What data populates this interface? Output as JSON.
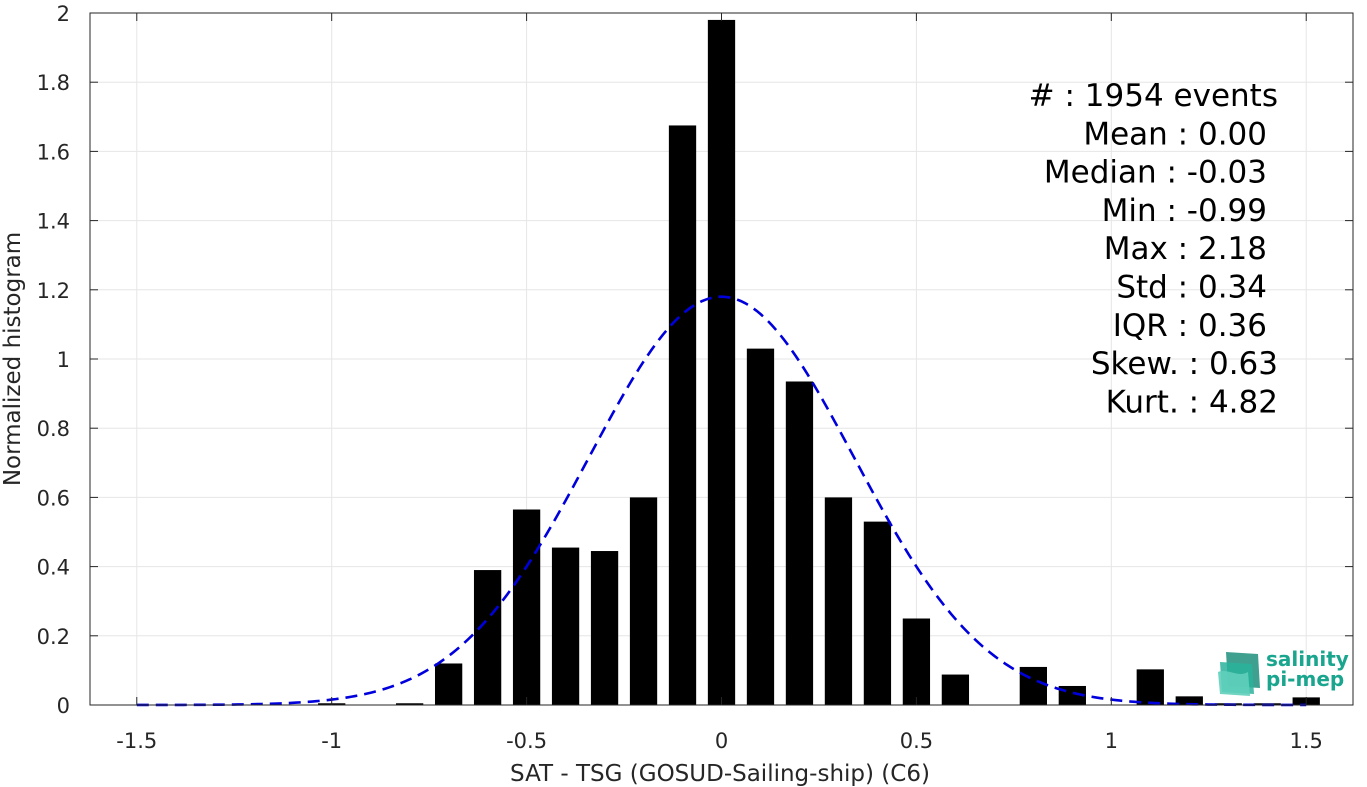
{
  "chart_data": {
    "type": "bar",
    "xlabel": "SAT - TSG (GOSUD-Sailing-ship) (C6)",
    "ylabel": "Normalized histogram",
    "xlim": [
      -1.62,
      1.62
    ],
    "ylim": [
      0,
      2
    ],
    "grid": true,
    "x_ticks": [
      -1.5,
      -1,
      -0.5,
      0,
      0.5,
      1,
      1.5
    ],
    "x_tick_labels": [
      "-1.5",
      "-1",
      "-0.5",
      "0",
      "0.5",
      "1",
      "1.5"
    ],
    "y_ticks": [
      0,
      0.2,
      0.4,
      0.6,
      0.8,
      1,
      1.2,
      1.4,
      1.6,
      1.8,
      2
    ],
    "y_tick_labels": [
      "0",
      "0.2",
      "0.4",
      "0.6",
      "0.8",
      "1",
      "1.2",
      "1.4",
      "1.6",
      "1.8",
      "2"
    ],
    "bin_width": 0.1,
    "bars": {
      "x": [
        -1.5,
        -1.4,
        -1.3,
        -1.2,
        -1.1,
        -1.0,
        -0.9,
        -0.8,
        -0.7,
        -0.6,
        -0.5,
        -0.4,
        -0.3,
        -0.2,
        -0.1,
        0.0,
        0.1,
        0.2,
        0.3,
        0.4,
        0.5,
        0.6,
        0.7,
        0.8,
        0.9,
        1.0,
        1.1,
        1.2,
        1.3,
        1.4,
        1.5
      ],
      "values": [
        0,
        0,
        0,
        0,
        0,
        0.005,
        0,
        0.005,
        0.12,
        0.39,
        0.565,
        0.455,
        0.445,
        0.6,
        1.675,
        1.98,
        1.03,
        0.935,
        0.6,
        0.53,
        0.25,
        0.088,
        0,
        0.11,
        0.055,
        0,
        0.103,
        0.025,
        0.005,
        0.005,
        0.022
      ],
      "color": "#000000"
    },
    "fit_curve": {
      "style": "dashed",
      "color": "#0000dd",
      "mean": 0.0,
      "peak": 1.18,
      "sigma": 0.34
    },
    "annotations": [
      "#  : 1954 events",
      "Mean : 0.00",
      "Median : -0.03",
      "Min : -0.99",
      "Max : 2.18",
      "Std : 0.34",
      "IQR : 0.36",
      "Skew. : 0.63",
      "Kurt. : 4.82"
    ]
  },
  "logo": {
    "line1": "salinity",
    "line2": "pi-mep",
    "color": "#1aa58e"
  }
}
